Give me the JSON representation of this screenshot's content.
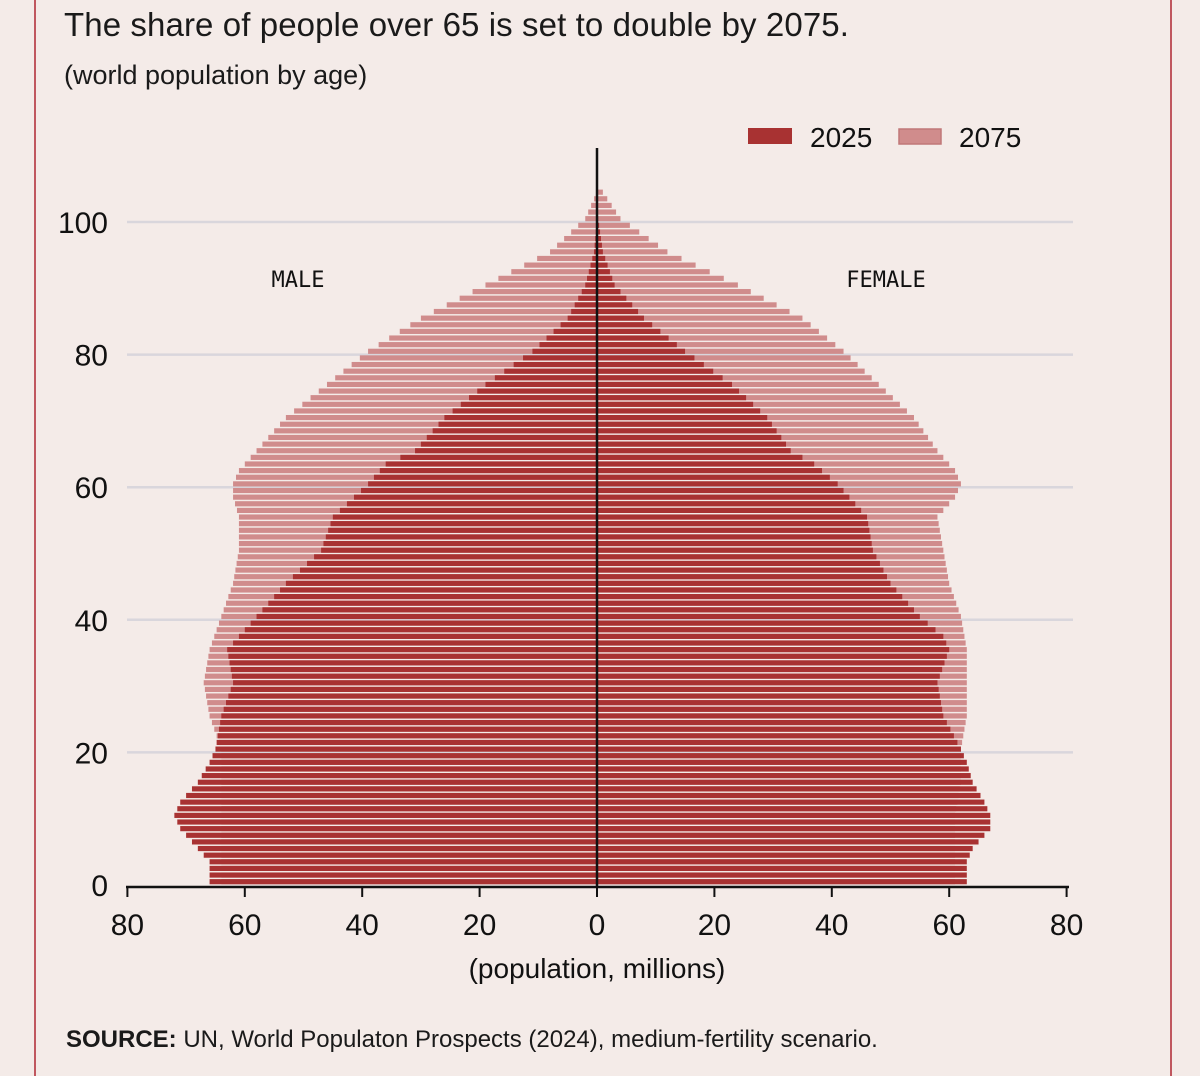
{
  "title": "The share of people over 65 is set to double by 2075.",
  "subtitle": "(world population by age)",
  "source_label": "SOURCE:",
  "source_text": " UN, World Populaton Prospects (2024), medium-fertility scenario.",
  "colors": {
    "s2025": "#a83232",
    "s2075": "#d08c8c",
    "background": "#f4ebe8",
    "frame": "#c0575f"
  },
  "chart_data": {
    "type": "bar",
    "orientation": "horizontal-pyramid",
    "xlabel": "(population, millions)",
    "ylabel": "",
    "xlim": [
      -80,
      80
    ],
    "ylim": [
      0,
      110
    ],
    "x_ticks": [
      80,
      60,
      40,
      20,
      0,
      20,
      40,
      60,
      80
    ],
    "y_ticks": [
      0,
      20,
      40,
      60,
      80,
      100
    ],
    "grid": true,
    "legend_position": "top-right",
    "side_labels": {
      "left": "MALE",
      "right": "FEMALE"
    },
    "ages": "0 to 100 (single years)",
    "series": [
      {
        "name": "2025",
        "male_points": [
          [
            0,
            66
          ],
          [
            3,
            66
          ],
          [
            5,
            68
          ],
          [
            8,
            71
          ],
          [
            10,
            72
          ],
          [
            12,
            71
          ],
          [
            15,
            68
          ],
          [
            18,
            66
          ],
          [
            20,
            65
          ],
          [
            25,
            64
          ],
          [
            30,
            62
          ],
          [
            35,
            63
          ],
          [
            37,
            61
          ],
          [
            40,
            58
          ],
          [
            45,
            53
          ],
          [
            50,
            47
          ],
          [
            55,
            45
          ],
          [
            60,
            39
          ],
          [
            63,
            36
          ],
          [
            65,
            31
          ],
          [
            70,
            26
          ],
          [
            75,
            19
          ],
          [
            80,
            11
          ],
          [
            85,
            5
          ],
          [
            90,
            2
          ],
          [
            95,
            0.5
          ],
          [
            100,
            0
          ]
        ],
        "female_points": [
          [
            0,
            63
          ],
          [
            3,
            63
          ],
          [
            5,
            64
          ],
          [
            8,
            67
          ],
          [
            10,
            67
          ],
          [
            12,
            66
          ],
          [
            15,
            64
          ],
          [
            18,
            63
          ],
          [
            20,
            62
          ],
          [
            25,
            59
          ],
          [
            30,
            58
          ],
          [
            35,
            60
          ],
          [
            37,
            59
          ],
          [
            40,
            55
          ],
          [
            45,
            50
          ],
          [
            50,
            47
          ],
          [
            55,
            46
          ],
          [
            60,
            41
          ],
          [
            63,
            37
          ],
          [
            65,
            33
          ],
          [
            70,
            29
          ],
          [
            75,
            23
          ],
          [
            80,
            15
          ],
          [
            85,
            8
          ],
          [
            90,
            3
          ],
          [
            95,
            1
          ],
          [
            100,
            0.2
          ]
        ]
      },
      {
        "name": "2075",
        "male_points": [
          [
            0,
            64
          ],
          [
            5,
            64
          ],
          [
            10,
            64
          ],
          [
            15,
            64
          ],
          [
            20,
            64
          ],
          [
            25,
            66
          ],
          [
            30,
            67
          ],
          [
            35,
            66
          ],
          [
            40,
            64
          ],
          [
            45,
            62
          ],
          [
            50,
            61
          ],
          [
            55,
            61
          ],
          [
            58,
            62
          ],
          [
            60,
            62
          ],
          [
            62,
            61
          ],
          [
            65,
            58
          ],
          [
            70,
            53
          ],
          [
            75,
            46
          ],
          [
            80,
            39
          ],
          [
            85,
            30
          ],
          [
            90,
            19
          ],
          [
            95,
            8
          ],
          [
            100,
            2
          ],
          [
            104,
            0
          ]
        ],
        "female_points": [
          [
            0,
            61
          ],
          [
            5,
            61
          ],
          [
            10,
            61
          ],
          [
            15,
            62
          ],
          [
            20,
            62
          ],
          [
            25,
            63
          ],
          [
            30,
            63
          ],
          [
            35,
            63
          ],
          [
            40,
            62
          ],
          [
            45,
            60
          ],
          [
            50,
            59
          ],
          [
            55,
            58
          ],
          [
            58,
            61
          ],
          [
            60,
            62
          ],
          [
            62,
            61
          ],
          [
            65,
            58
          ],
          [
            70,
            54
          ],
          [
            75,
            48
          ],
          [
            80,
            42
          ],
          [
            85,
            35
          ],
          [
            90,
            24
          ],
          [
            95,
            12
          ],
          [
            100,
            4
          ],
          [
            104,
            1
          ]
        ]
      }
    ]
  }
}
